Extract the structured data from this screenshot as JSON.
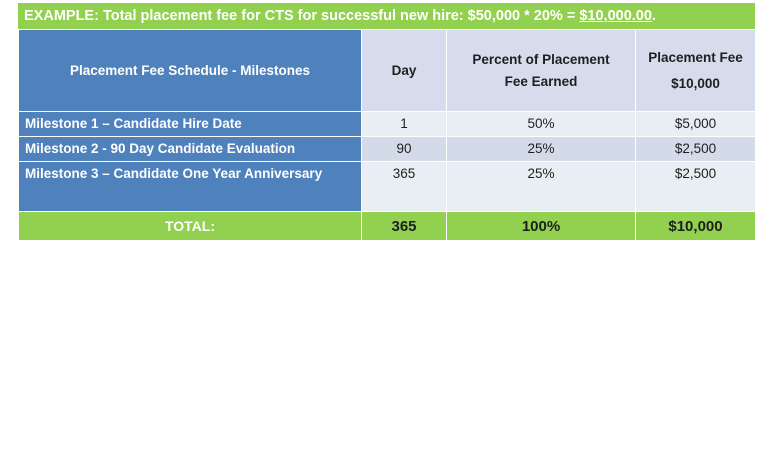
{
  "banner": {
    "prefix": "EXAMPLE: Total placement fee for CTS for successful new hire: $50,000 * 20% = ",
    "amount": "$10,000.00",
    "suffix": "."
  },
  "table": {
    "headers": {
      "milestones": "Placement Fee Schedule - Milestones",
      "day": "Day",
      "percent": "Percent of Placement Fee Earned",
      "fee_title": "Placement Fee",
      "fee_amount": "$10,000"
    },
    "rows": [
      {
        "milestone": "Milestone 1 – Candidate Hire Date",
        "day": "1",
        "percent": "50%",
        "fee": "$5,000"
      },
      {
        "milestone": "Milestone 2 - 90 Day Candidate Evaluation",
        "day": "90",
        "percent": "25%",
        "fee": "$2,500"
      },
      {
        "milestone": "Milestone 3 – Candidate One Year Anniversary",
        "day": "365",
        "percent": "25%",
        "fee": "$2,500"
      }
    ],
    "total": {
      "label": "TOTAL:",
      "day": "365",
      "percent": "100%",
      "fee": "$10,000"
    }
  },
  "colors": {
    "green": "#92d050",
    "blue": "#4f81bd",
    "light_row": "#e9edf4",
    "mid_row": "#d3dbe9"
  }
}
